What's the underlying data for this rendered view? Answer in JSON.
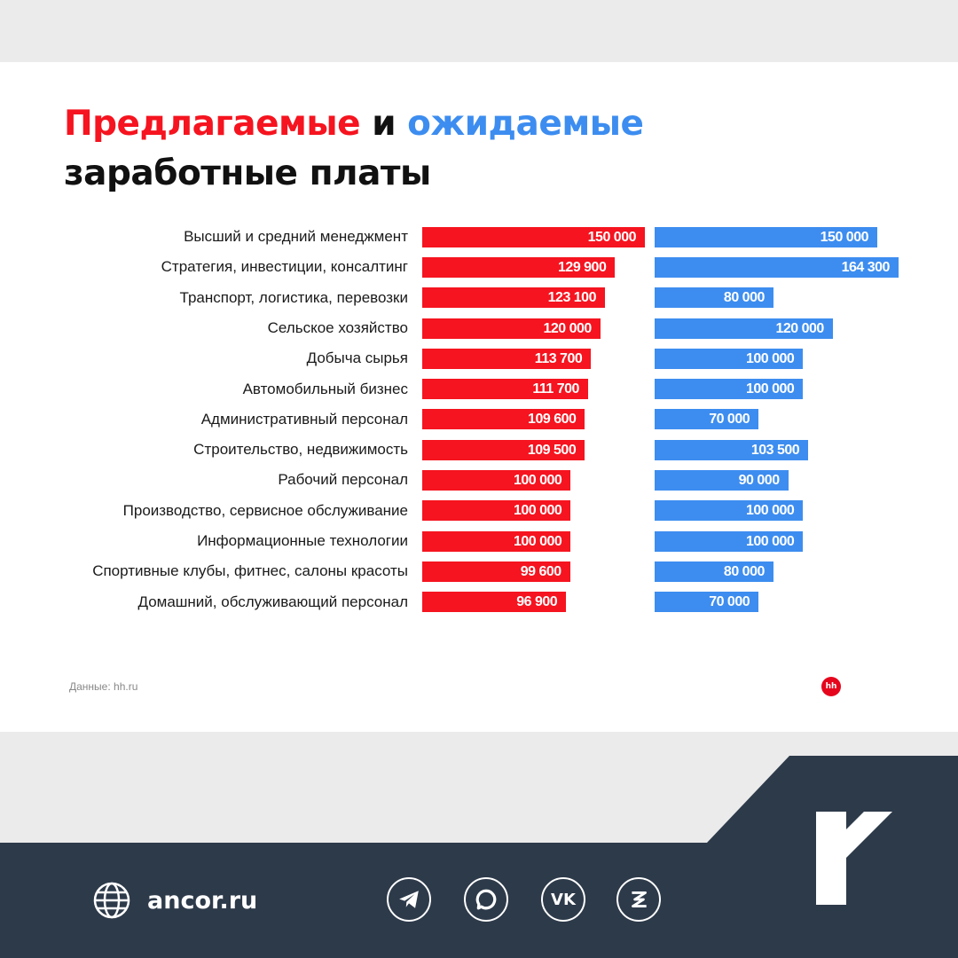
{
  "title": {
    "part_red": "Предлагаемые",
    "part_conj": " и ",
    "part_blue": "ожидаемые",
    "line2": "заработные платы"
  },
  "colors": {
    "offered": "#f5141f",
    "expected": "#3d8df0",
    "footer": "#2d3a4a"
  },
  "chart_data": {
    "type": "bar",
    "orientation": "horizontal",
    "categories": [
      "Высший и средний менеджмент",
      "Стратегия, инвестиции, консалтинг",
      "Транспорт, логистика, перевозки",
      "Сельское хозяйство",
      "Добыча сырья",
      "Автомобильный бизнес",
      "Административный персонал",
      "Строительство, недвижимость",
      "Рабочий персонал",
      "Производство, сервисное обслуживание",
      "Информационные технологии",
      "Спортивные клубы, фитнес, салоны красоты",
      "Домашний, обслуживающий персонал"
    ],
    "series": [
      {
        "values": [
          150000,
          129900,
          123100,
          120000,
          113700,
          111700,
          109600,
          109500,
          100000,
          100000,
          100000,
          99600,
          96900
        ],
        "labels": [
          "150 000",
          "129 900",
          "123 100",
          "120 000",
          "113 700",
          "111 700",
          "109 600",
          "109 500",
          "100 000",
          "100 000",
          "100 000",
          "99 600",
          "96 900"
        ],
        "color": "#f5141f"
      },
      {
        "values": [
          150000,
          164300,
          80000,
          120000,
          100000,
          100000,
          70000,
          103500,
          90000,
          100000,
          100000,
          80000,
          70000
        ],
        "labels": [
          "150 000",
          "164 300",
          "80 000",
          "120 000",
          "100 000",
          "100 000",
          "70 000",
          "103 500",
          "90 000",
          "100 000",
          "100 000",
          "80 000",
          "70 000"
        ],
        "color": "#3d8df0"
      }
    ]
  },
  "source": "Данные: hh.ru",
  "hh_logo": "hh",
  "footer": {
    "site": "ancor.ru",
    "icons": [
      "globe-icon",
      "telegram-icon",
      "max-messenger-icon",
      "vk-icon",
      "zen-icon",
      "ancor-logo"
    ],
    "vk_label": "VK"
  }
}
